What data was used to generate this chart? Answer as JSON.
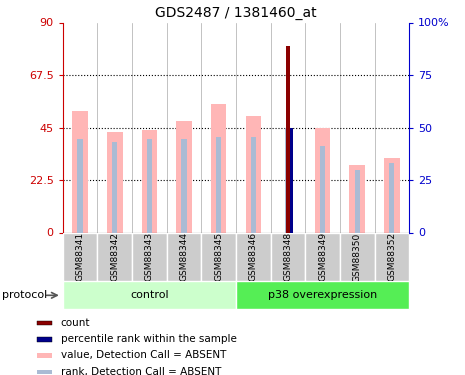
{
  "title": "GDS2487 / 1381460_at",
  "samples": [
    "GSM88341",
    "GSM88342",
    "GSM88343",
    "GSM88344",
    "GSM88345",
    "GSM88346",
    "GSM88348",
    "GSM88349",
    "GSM88350",
    "GSM88352"
  ],
  "value_bars": [
    52,
    43,
    44,
    48,
    55,
    50,
    0,
    45,
    29,
    32
  ],
  "rank_bars": [
    40,
    39,
    40,
    40,
    41,
    41,
    45,
    37,
    27,
    30
  ],
  "count_bar": [
    0,
    0,
    0,
    0,
    0,
    0,
    80,
    0,
    0,
    0
  ],
  "percentile_rank": [
    0,
    0,
    0,
    0,
    0,
    0,
    45,
    0,
    0,
    0
  ],
  "n_control": 5,
  "n_p38": 5,
  "left_ylim": [
    0,
    90
  ],
  "right_ylim": [
    0,
    100
  ],
  "left_yticks": [
    0,
    22.5,
    45,
    67.5,
    90
  ],
  "right_yticks": [
    0,
    25,
    50,
    75,
    100
  ],
  "left_ytick_labels": [
    "0",
    "22.5",
    "45",
    "67.5",
    "90"
  ],
  "right_ytick_labels": [
    "0",
    "25",
    "50",
    "75",
    "100%"
  ],
  "color_value_bar": "#FFB6B6",
  "color_rank_bar": "#AABBD4",
  "color_count_bar": "#8B0000",
  "color_percentile": "#00008B",
  "color_control_bg": "#CCFFCC",
  "color_p38_bg": "#55EE55",
  "color_left_axis": "#CC0000",
  "color_right_axis": "#0000CC",
  "protocol_label": "protocol",
  "control_label": "control",
  "p38_label": "p38 overexpression",
  "legend_items": [
    {
      "label": "count",
      "color": "#8B0000"
    },
    {
      "label": "percentile rank within the sample",
      "color": "#00008B"
    },
    {
      "label": "value, Detection Call = ABSENT",
      "color": "#FFB6B6"
    },
    {
      "label": "rank, Detection Call = ABSENT",
      "color": "#AABBD4"
    }
  ],
  "col_border_color": "#AAAAAA",
  "sample_box_color": "#CCCCCC"
}
